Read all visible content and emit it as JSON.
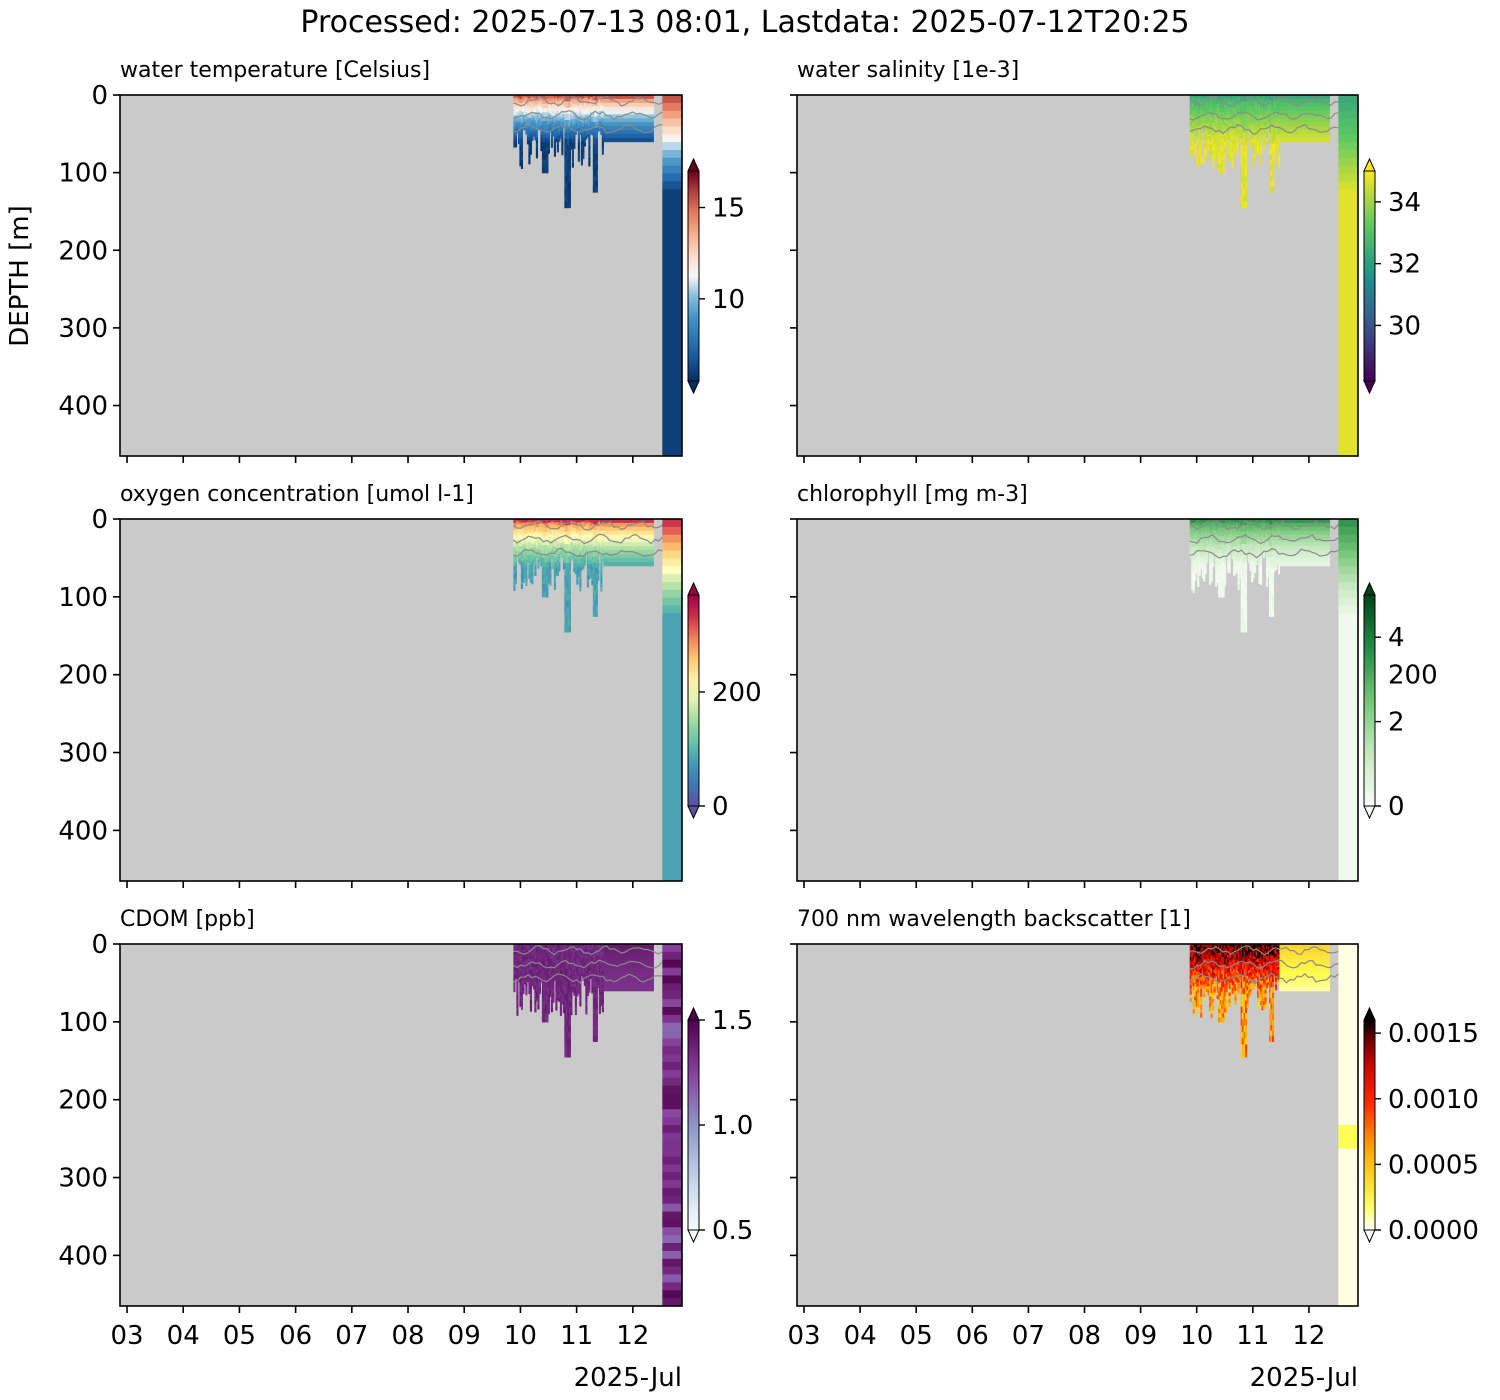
{
  "figure_title": "Processed: 2025-07-13 08:01, Lastdata: 2025-07-12T20:25",
  "x_date_label": "2025-Jul",
  "y_axis_label": "DEPTH [m]",
  "colors": {
    "plot_background": "#cacaca",
    "contour": "#8a8a8a",
    "frame": "#000000"
  },
  "chart_data": [
    {
      "type": "heatmap",
      "title": "water temperature [Celsius]",
      "variable": "water temperature",
      "units": "Celsius",
      "x_ticks": [
        "03",
        "04",
        "05",
        "06",
        "07",
        "08",
        "09",
        "10",
        "11",
        "12"
      ],
      "x_range": [
        "2025-07-02T21:00",
        "2025-07-12T21:00"
      ],
      "y_ticks": [
        0,
        100,
        200,
        300,
        400
      ],
      "y_range": [
        0,
        465
      ],
      "y_inverted": true,
      "y_tick_labels_shown": true,
      "colormap": "RdBu_r",
      "colorbar_ticks": [
        10,
        15
      ],
      "color_range": [
        5.5,
        17
      ],
      "colorbar_extend": "both",
      "data_coverage": "2025-07-10 to 2025-07-12, mostly 0-140 m; right-edge profile to 465 m",
      "surface_value": 15.5,
      "deep_value": 6
    },
    {
      "type": "heatmap",
      "title": "water salinity [1e-3]",
      "variable": "water salinity",
      "units": "1e-3",
      "x_ticks": [
        "03",
        "04",
        "05",
        "06",
        "07",
        "08",
        "09",
        "10",
        "11",
        "12"
      ],
      "x_range": [
        "2025-07-02T21:00",
        "2025-07-12T21:00"
      ],
      "y_ticks": [
        0,
        100,
        200,
        300,
        400
      ],
      "y_range": [
        0,
        465
      ],
      "y_inverted": true,
      "y_tick_labels_shown": false,
      "colormap": "viridis",
      "colorbar_ticks": [
        30,
        32,
        34
      ],
      "color_range": [
        28.2,
        35
      ],
      "colorbar_extend": "both",
      "data_coverage": "2025-07-10 to 2025-07-12, mostly 0-140 m; right-edge profile to 465 m",
      "surface_value": 32.3,
      "deep_value": 34.7
    },
    {
      "type": "heatmap",
      "title": "oxygen concentration [umol l-1]",
      "variable": "oxygen concentration",
      "units": "umol l-1",
      "x_ticks": [
        "03",
        "04",
        "05",
        "06",
        "07",
        "08",
        "09",
        "10",
        "11",
        "12"
      ],
      "x_range": [
        "2025-07-02T21:00",
        "2025-07-12T21:00"
      ],
      "y_ticks": [
        0,
        100,
        200,
        300,
        400
      ],
      "y_range": [
        0,
        465
      ],
      "y_inverted": true,
      "y_tick_labels_shown": true,
      "colormap": "Spectral_r",
      "colorbar_ticks": [
        0,
        200
      ],
      "color_range": [
        0,
        370
      ],
      "colorbar_extend": "both",
      "data_coverage": "2025-07-10 to 2025-07-12, mostly 0-140 m; right-edge profile to 465 m",
      "surface_value": 330,
      "deep_value": 80
    },
    {
      "type": "heatmap",
      "title": "chlorophyll [mg m-3]",
      "variable": "chlorophyll",
      "units": "mg m-3",
      "x_ticks": [
        "03",
        "04",
        "05",
        "06",
        "07",
        "08",
        "09",
        "10",
        "11",
        "12"
      ],
      "x_range": [
        "2025-07-02T21:00",
        "2025-07-12T21:00"
      ],
      "y_ticks": [
        0,
        100,
        200,
        300,
        400
      ],
      "y_range": [
        0,
        465
      ],
      "y_inverted": true,
      "y_tick_labels_shown": false,
      "right_tick_label": "200",
      "colormap": "Greens",
      "colorbar_ticks": [
        0,
        2,
        4
      ],
      "color_range": [
        0,
        5
      ],
      "colorbar_extend": "both",
      "data_coverage": "2025-07-10 to 2025-07-12, mostly 0-140 m; right-edge profile to 465 m",
      "surface_value": 3.5,
      "deep_value": 0.2
    },
    {
      "type": "heatmap",
      "title": "CDOM [ppb]",
      "variable": "CDOM",
      "units": "ppb",
      "x_ticks": [
        "03",
        "04",
        "05",
        "06",
        "07",
        "08",
        "09",
        "10",
        "11",
        "12"
      ],
      "x_range": [
        "2025-07-02T21:00",
        "2025-07-12T21:00"
      ],
      "y_ticks": [
        0,
        100,
        200,
        300,
        400
      ],
      "y_range": [
        0,
        465
      ],
      "y_inverted": true,
      "y_tick_labels_shown": true,
      "colormap": "BuPu",
      "colorbar_ticks": [
        0.5,
        1.0,
        1.5
      ],
      "colorbar_tick_labels": [
        "0.5",
        "1.0",
        "1.5"
      ],
      "color_range": [
        0.5,
        1.5
      ],
      "colorbar_extend": "both",
      "data_coverage": "2025-07-10 to 2025-07-12, mostly 0-140 m; right-edge profile to 465 m",
      "surface_value": 1.4,
      "deep_value": 1.3
    },
    {
      "type": "heatmap",
      "title": "700 nm wavelength backscatter [1]",
      "variable": "700 nm wavelength backscatter",
      "units": "1",
      "x_ticks": [
        "03",
        "04",
        "05",
        "06",
        "07",
        "08",
        "09",
        "10",
        "11",
        "12"
      ],
      "x_range": [
        "2025-07-02T21:00",
        "2025-07-12T21:00"
      ],
      "y_ticks": [
        0,
        100,
        200,
        300,
        400
      ],
      "y_range": [
        0,
        465
      ],
      "y_inverted": true,
      "y_tick_labels_shown": false,
      "colormap": "hot_r",
      "colorbar_ticks": [
        0.0,
        0.0005,
        0.001,
        0.0015
      ],
      "colorbar_tick_labels": [
        "0.0000",
        "0.0005",
        "0.0010",
        "0.0015"
      ],
      "color_range": [
        0,
        0.0016
      ],
      "colorbar_extend": "both",
      "data_coverage": "2025-07-10 to 2025-07-12, mostly 0-140 m; right-edge profile to 465 m",
      "surface_value": 0.0012,
      "deep_value": 0.0001
    }
  ]
}
